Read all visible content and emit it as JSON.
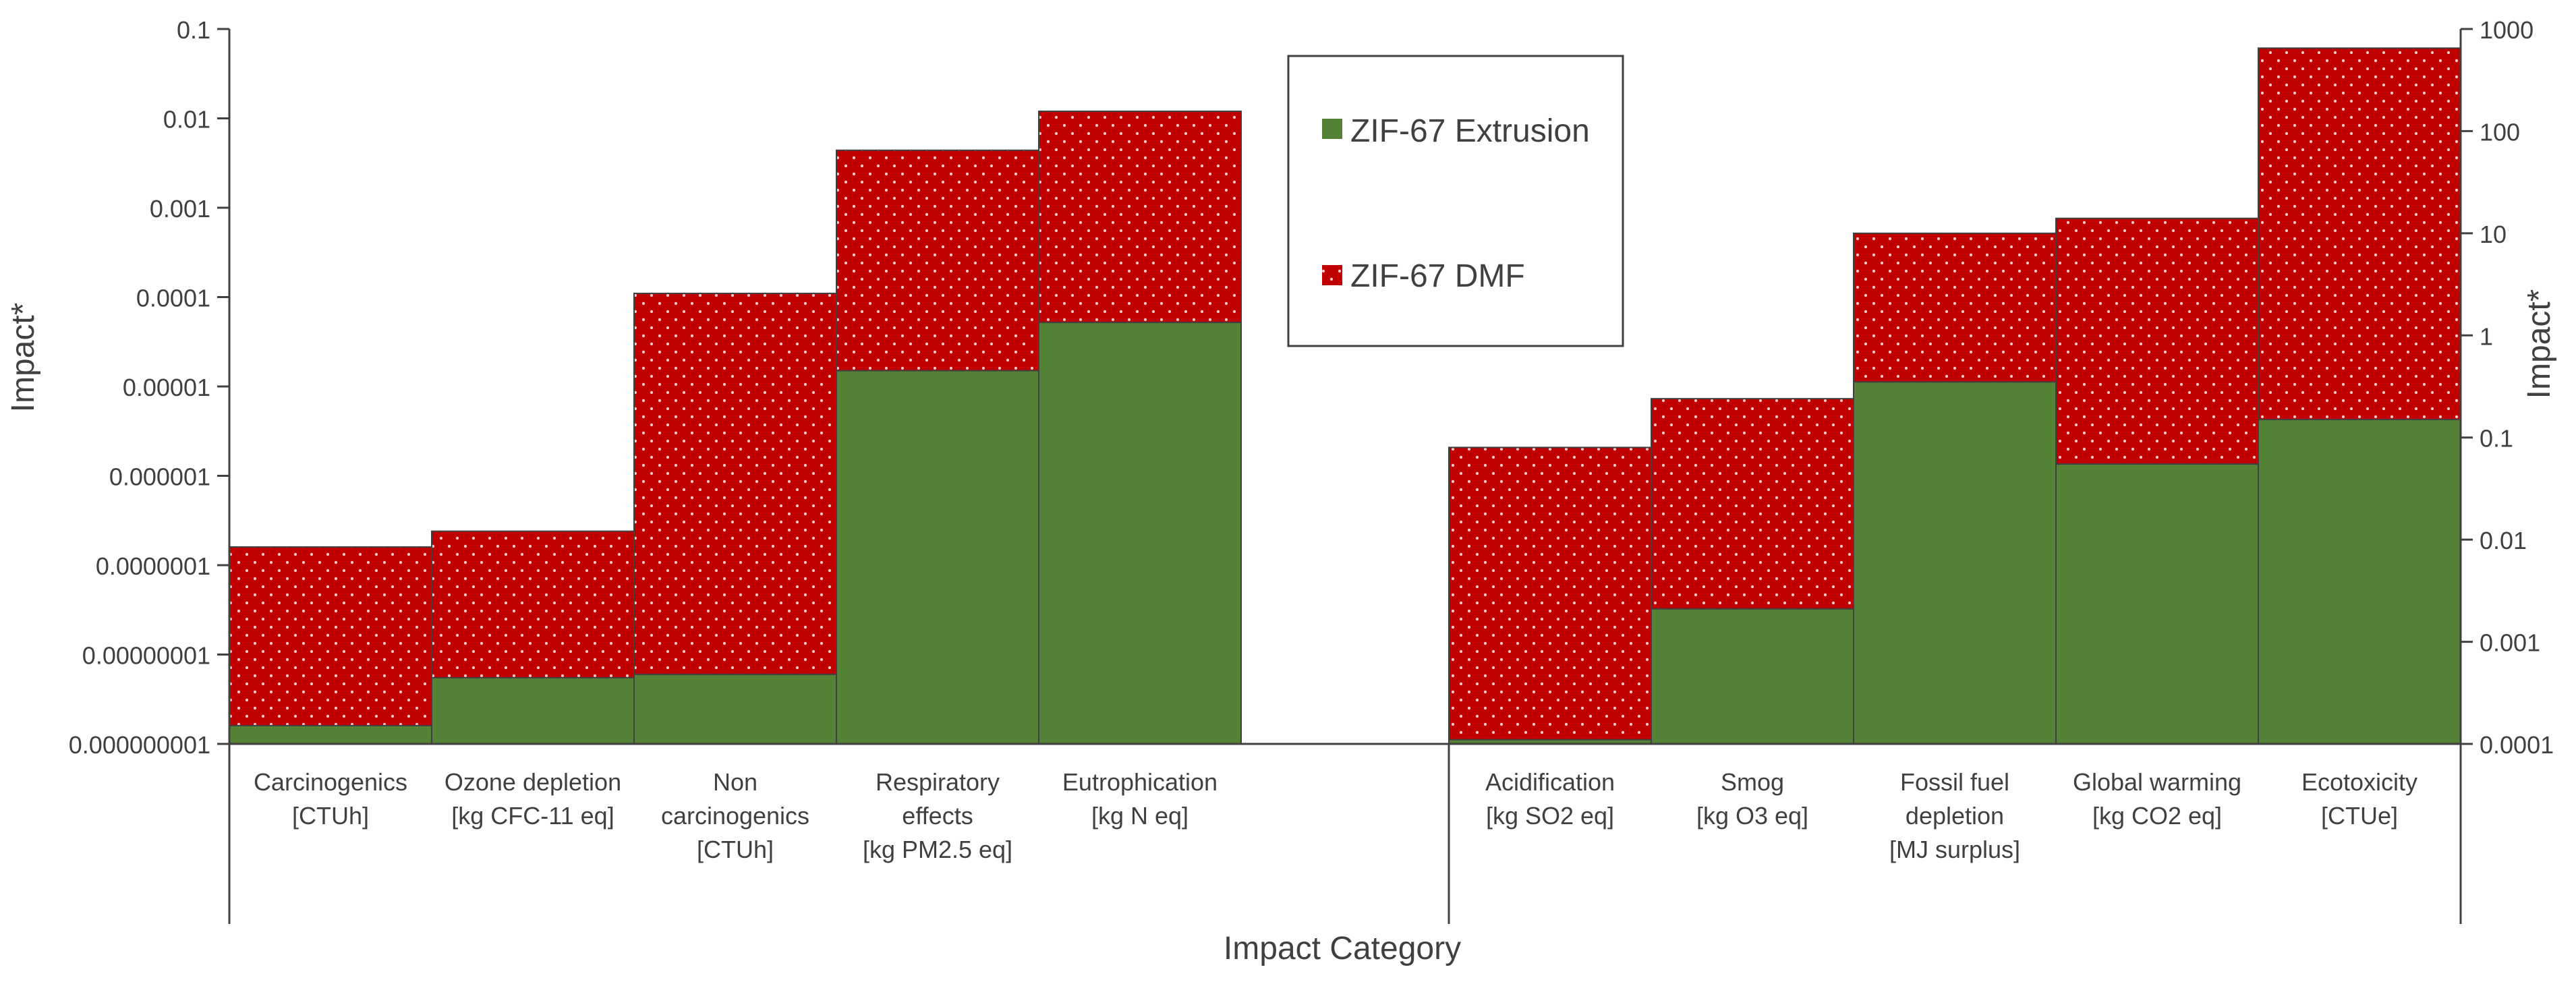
{
  "chart_data": {
    "type": "bar",
    "subtype": "stacked-log",
    "xlabel": "Impact Category",
    "ylabel_left": "Impact*",
    "ylabel_right": "Impact*",
    "left_ticks": [
      "0.1",
      "0.01",
      "0.001",
      "0.0001",
      "0.00001",
      "0.000001",
      "0.0000001",
      "0.00000001",
      "0.000000001"
    ],
    "right_ticks": [
      "1000",
      "100",
      "10",
      "1",
      "0.1",
      "0.01",
      "0.001",
      "0.0001"
    ],
    "ylim_left": [
      1e-09,
      0.1
    ],
    "ylim_right": [
      0.0001,
      1000
    ],
    "scale": "log",
    "legend": [
      {
        "name": "ZIF-67 Extrusion",
        "color": "#538135"
      },
      {
        "name": "ZIF-67 DMF",
        "color": "#c00000"
      }
    ],
    "groups": [
      {
        "axis": "left",
        "categories": [
          {
            "lines": [
              "Carcinogenics",
              "[CTUh]"
            ],
            "extrusion": 1.6e-09,
            "dmf": 1.6e-07
          },
          {
            "lines": [
              "Ozone depletion",
              "[kg CFC-11 eq]"
            ],
            "extrusion": 5.5e-09,
            "dmf": 2.4e-07
          },
          {
            "lines": [
              "Non",
              "carcinogenics",
              "[CTUh]"
            ],
            "extrusion": 6e-09,
            "dmf": 0.00011
          },
          {
            "lines": [
              "Respiratory",
              "effects",
              "[kg PM2.5 eq]"
            ],
            "extrusion": 1.5e-05,
            "dmf": 0.0044
          },
          {
            "lines": [
              "Eutrophication",
              "[kg N eq]"
            ],
            "extrusion": 5.2e-05,
            "dmf": 0.012
          }
        ]
      },
      {
        "axis": "right",
        "categories": [
          {
            "lines": [
              "Acidification",
              "[kg SO2 eq]"
            ],
            "extrusion": 0.00011,
            "dmf": 0.08
          },
          {
            "lines": [
              "Smog",
              "[kg O3 eq]"
            ],
            "extrusion": 0.0021,
            "dmf": 0.24
          },
          {
            "lines": [
              "Fossil fuel",
              "depletion",
              "[MJ surplus]"
            ],
            "extrusion": 0.35,
            "dmf": 10
          },
          {
            "lines": [
              "Global warming",
              "[kg CO2 eq]"
            ],
            "extrusion": 0.055,
            "dmf": 14
          },
          {
            "lines": [
              "Ecotoxicity",
              "[CTUe]"
            ],
            "extrusion": 0.15,
            "dmf": 650
          }
        ]
      }
    ]
  }
}
